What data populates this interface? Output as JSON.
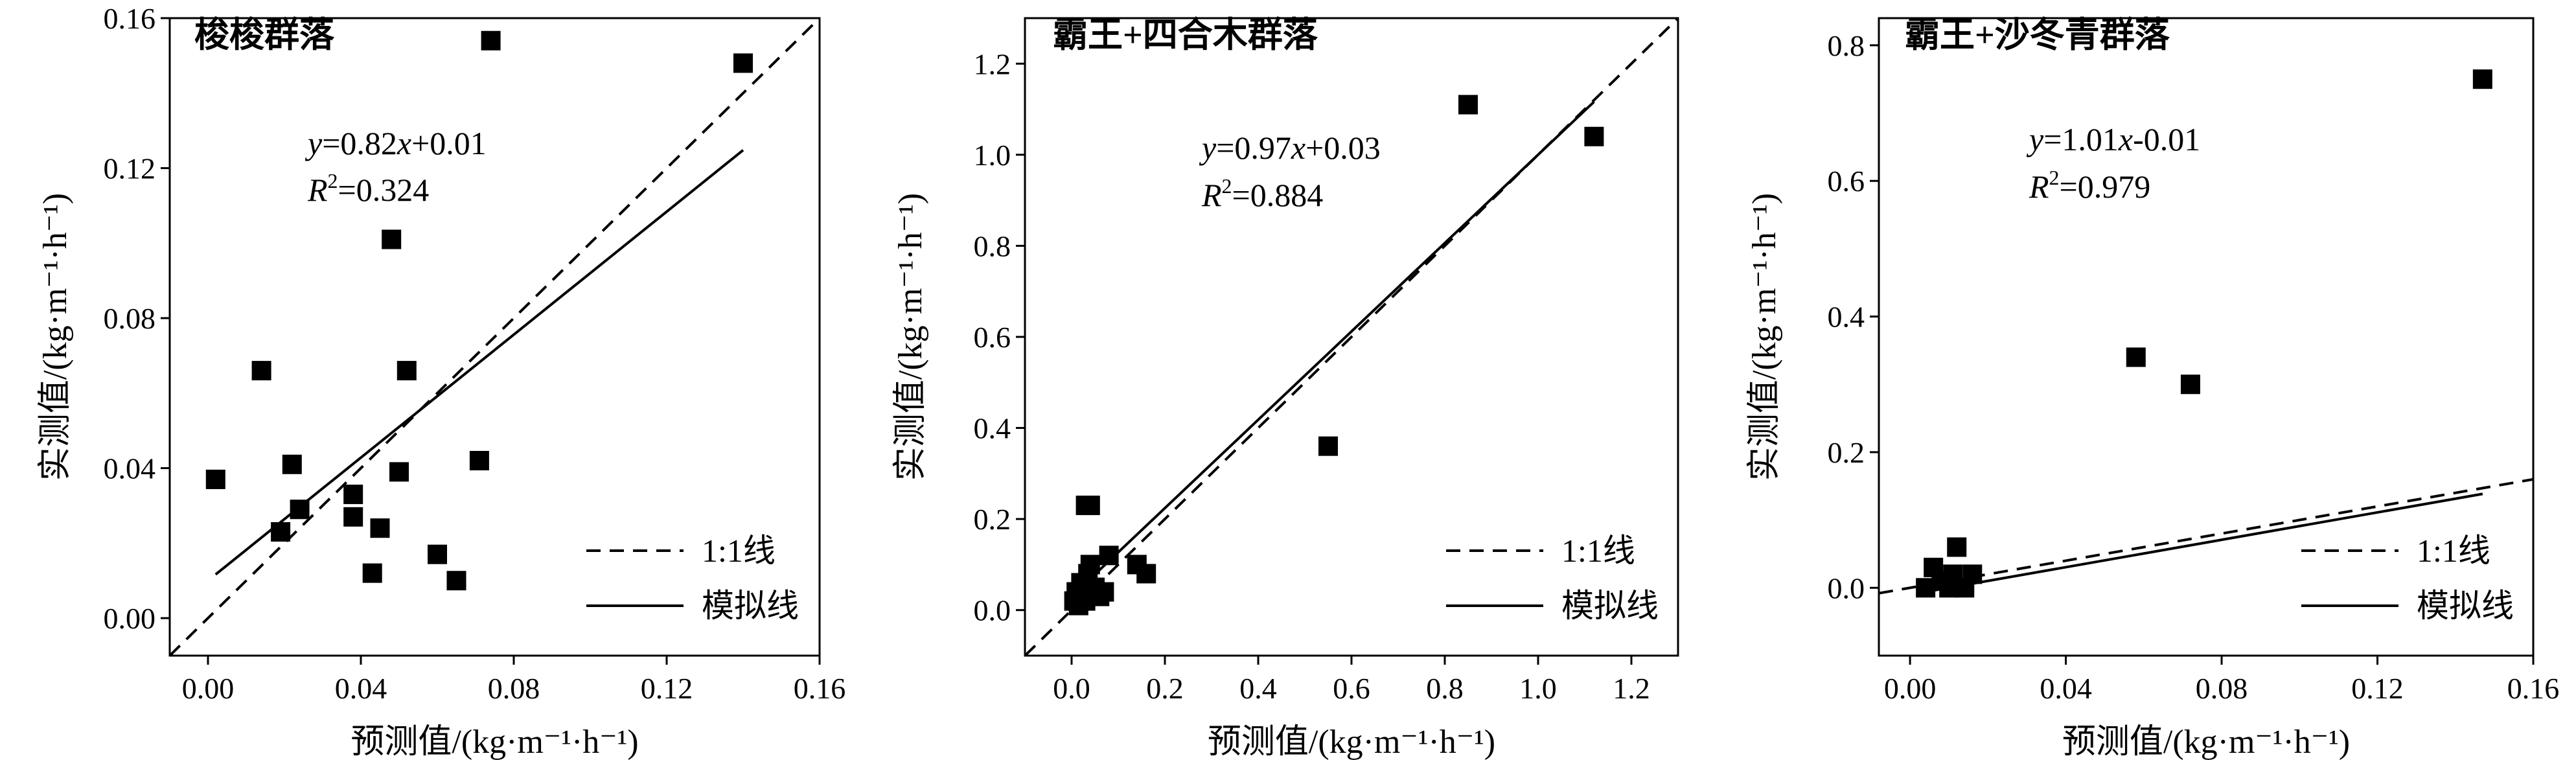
{
  "chart_data": [
    {
      "type": "scatter",
      "title": "梭梭群落",
      "xlabel": "预测值/(kg·m⁻¹·h⁻¹)",
      "ylabel": "实测值/(kg·m⁻¹·h⁻¹)",
      "xlim": [
        -0.01,
        0.16
      ],
      "ylim": [
        -0.01,
        0.16
      ],
      "xticks": [
        0.0,
        0.04,
        0.08,
        0.12,
        0.16
      ],
      "xtick_labels": [
        "0.00",
        "0.04",
        "0.08",
        "0.12",
        "0.16"
      ],
      "yticks": [
        0.0,
        0.04,
        0.08,
        0.12,
        0.16
      ],
      "ytick_labels": [
        "0.00",
        "0.04",
        "0.08",
        "0.12",
        "0.16"
      ],
      "points": [
        {
          "x": 0.002,
          "y": 0.037
        },
        {
          "x": 0.014,
          "y": 0.066
        },
        {
          "x": 0.019,
          "y": 0.023
        },
        {
          "x": 0.022,
          "y": 0.041
        },
        {
          "x": 0.024,
          "y": 0.029
        },
        {
          "x": 0.038,
          "y": 0.033
        },
        {
          "x": 0.038,
          "y": 0.027
        },
        {
          "x": 0.043,
          "y": 0.012
        },
        {
          "x": 0.045,
          "y": 0.024
        },
        {
          "x": 0.048,
          "y": 0.101
        },
        {
          "x": 0.05,
          "y": 0.039
        },
        {
          "x": 0.052,
          "y": 0.066
        },
        {
          "x": 0.06,
          "y": 0.017
        },
        {
          "x": 0.065,
          "y": 0.01
        },
        {
          "x": 0.071,
          "y": 0.042
        },
        {
          "x": 0.074,
          "y": 0.154
        },
        {
          "x": 0.14,
          "y": 0.148
        }
      ],
      "fit": {
        "slope": 0.82,
        "intercept": 0.01,
        "x_range": [
          0.002,
          0.14
        ]
      },
      "equation": {
        "y": "y",
        "eq_mid": "=0.82",
        "x": "x",
        "eq_end": "+0.01",
        "r": "R",
        "sup": "2",
        "r_val": "=0.324"
      },
      "legend": [
        {
          "label": "1:1线",
          "style": "dashed"
        },
        {
          "label": "模拟线",
          "style": "solid"
        }
      ],
      "legend_position": "bottom-right"
    },
    {
      "type": "scatter",
      "title": "霸王+四合木群落",
      "xlabel": "预测值/(kg·m⁻¹·h⁻¹)",
      "ylabel": "实测值/(kg·m⁻¹·h⁻¹)",
      "xlim": [
        -0.1,
        1.3
      ],
      "ylim": [
        -0.1,
        1.3
      ],
      "xticks": [
        0.0,
        0.2,
        0.4,
        0.6,
        0.8,
        1.0,
        1.2
      ],
      "xtick_labels": [
        "0.0",
        "0.2",
        "0.4",
        "0.6",
        "0.8",
        "1.0",
        "1.2"
      ],
      "yticks": [
        0.0,
        0.2,
        0.4,
        0.6,
        0.8,
        1.0,
        1.2
      ],
      "ytick_labels": [
        "0.0",
        "0.2",
        "0.4",
        "0.6",
        "0.8",
        "1.0",
        "1.2"
      ],
      "points": [
        {
          "x": 0.005,
          "y": 0.02
        },
        {
          "x": 0.01,
          "y": 0.04
        },
        {
          "x": 0.015,
          "y": 0.01
        },
        {
          "x": 0.02,
          "y": 0.03
        },
        {
          "x": 0.02,
          "y": 0.06
        },
        {
          "x": 0.03,
          "y": 0.23
        },
        {
          "x": 0.03,
          "y": 0.02
        },
        {
          "x": 0.035,
          "y": 0.08
        },
        {
          "x": 0.04,
          "y": 0.23
        },
        {
          "x": 0.04,
          "y": 0.1
        },
        {
          "x": 0.05,
          "y": 0.05
        },
        {
          "x": 0.06,
          "y": 0.03
        },
        {
          "x": 0.07,
          "y": 0.04
        },
        {
          "x": 0.08,
          "y": 0.12
        },
        {
          "x": 0.14,
          "y": 0.1
        },
        {
          "x": 0.16,
          "y": 0.08
        },
        {
          "x": 0.55,
          "y": 0.36
        },
        {
          "x": 0.85,
          "y": 1.11
        },
        {
          "x": 1.12,
          "y": 1.04
        }
      ],
      "fit": {
        "slope": 0.97,
        "intercept": 0.03,
        "x_range": [
          0.0,
          1.12
        ]
      },
      "equation": {
        "y": "y",
        "eq_mid": "=0.97",
        "x": "x",
        "eq_end": "+0.03",
        "r": "R",
        "sup": "2",
        "r_val": "=0.884"
      },
      "legend": [
        {
          "label": "1:1线",
          "style": "dashed"
        },
        {
          "label": "模拟线",
          "style": "solid"
        }
      ],
      "legend_position": "bottom-right"
    },
    {
      "type": "scatter",
      "title": "霸王+沙冬青群落",
      "xlabel": "预测值/(kg·m⁻¹·h⁻¹)",
      "ylabel": "实测值/(kg·m⁻¹·h⁻¹)",
      "xlim": [
        -0.008,
        0.16
      ],
      "ylim": [
        -0.1,
        0.84
      ],
      "xticks": [
        0.0,
        0.04,
        0.08,
        0.12,
        0.16
      ],
      "xtick_labels": [
        "0.00",
        "0.04",
        "0.08",
        "0.12",
        "0.16"
      ],
      "yticks": [
        0.0,
        0.2,
        0.4,
        0.6,
        0.8
      ],
      "ytick_labels": [
        "0.0",
        "0.2",
        "0.4",
        "0.6",
        "0.8"
      ],
      "points": [
        {
          "x": 0.004,
          "y": 0.0
        },
        {
          "x": 0.006,
          "y": 0.03
        },
        {
          "x": 0.008,
          "y": 0.01
        },
        {
          "x": 0.01,
          "y": 0.0
        },
        {
          "x": 0.011,
          "y": 0.02
        },
        {
          "x": 0.012,
          "y": 0.06
        },
        {
          "x": 0.014,
          "y": 0.0
        },
        {
          "x": 0.016,
          "y": 0.02
        },
        {
          "x": 0.058,
          "y": 0.34
        },
        {
          "x": 0.072,
          "y": 0.3
        },
        {
          "x": 0.147,
          "y": 0.75
        }
      ],
      "fit": {
        "slope": 1.01,
        "intercept": -0.01,
        "x_range": [
          0.004,
          0.147
        ]
      },
      "equation": {
        "y": "y",
        "eq_mid": "=1.01",
        "x": "x",
        "eq_end": "-0.01",
        "r": "R",
        "sup": "2",
        "r_val": "=0.979"
      },
      "legend": [
        {
          "label": "1:1线",
          "style": "dashed"
        },
        {
          "label": "模拟线",
          "style": "solid"
        }
      ],
      "legend_position": "bottom-right"
    }
  ]
}
